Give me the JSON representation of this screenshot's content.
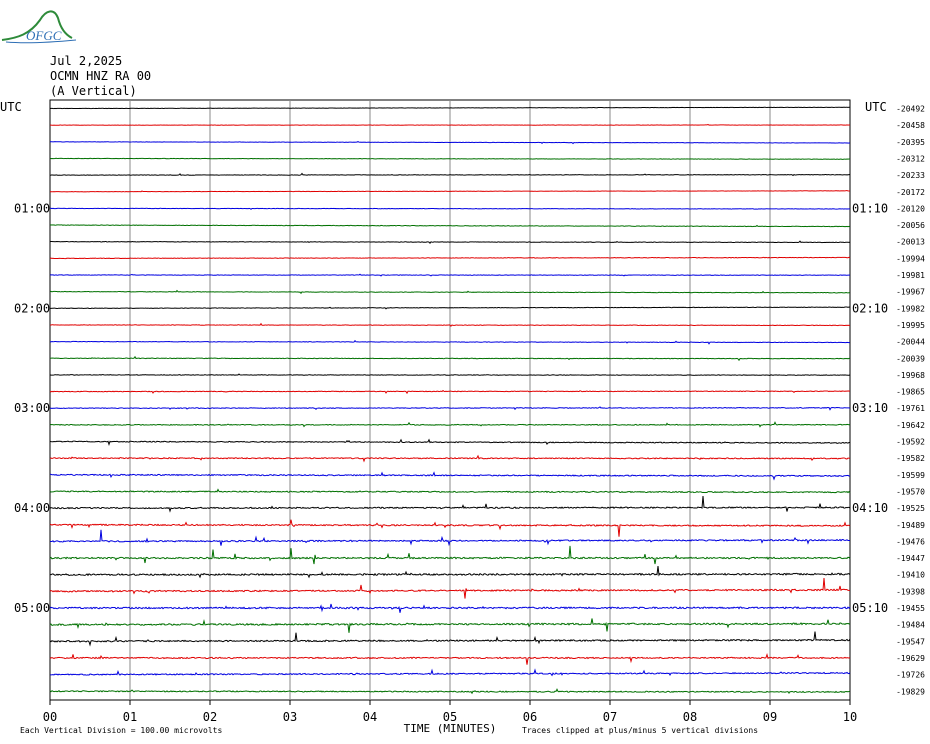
{
  "logo": {
    "text": "OFGC",
    "colors": {
      "mountain": "#2e8b3a",
      "text": "#2e6fb5"
    }
  },
  "header": {
    "date": "Jul 2,2025",
    "station": "OCMN HNZ RA 00",
    "component": "(A Vertical)"
  },
  "chart_data": {
    "type": "line",
    "title": "",
    "xlabel": "TIME (MINUTES)",
    "ylabel": "",
    "x_ticks": [
      "00",
      "01",
      "02",
      "03",
      "04",
      "05",
      "06",
      "07",
      "08",
      "09",
      "10"
    ],
    "xlim": [
      0,
      10
    ],
    "left_label_header": "UTC",
    "right_label_header": "UTC",
    "left_time_labels": [
      {
        "trace": 6,
        "label": "01:00"
      },
      {
        "trace": 12,
        "label": "02:00"
      },
      {
        "trace": 18,
        "label": "03:00"
      },
      {
        "trace": 24,
        "label": "04:00"
      },
      {
        "trace": 30,
        "label": "05:00"
      }
    ],
    "right_time_labels": [
      {
        "trace": 6,
        "label": "01:10"
      },
      {
        "trace": 12,
        "label": "02:10"
      },
      {
        "trace": 18,
        "label": "03:10"
      },
      {
        "trace": 24,
        "label": "04:10"
      },
      {
        "trace": 30,
        "label": "05:10"
      }
    ],
    "trace_colors": [
      "#000000",
      "#e00000",
      "#0000e0",
      "#007000"
    ],
    "trace_offsets": [
      "-20492",
      "-20458",
      "-20395",
      "-20312",
      "-20233",
      "-20172",
      "-20120",
      "-20056",
      "-20013",
      "-19994",
      "-19981",
      "-19967",
      "-19982",
      "-19995",
      "-20044",
      "-20039",
      "-19968",
      "-19865",
      "-19761",
      "-19642",
      "-19592",
      "-19582",
      "-19599",
      "-19570",
      "-19525",
      "-19489",
      "-19476",
      "-19447",
      "-19410",
      "-19398",
      "-19455",
      "-19484",
      "-19547",
      "-19629",
      "-19726",
      "-19829"
    ],
    "trace_activity": [
      0.2,
      0.2,
      0.2,
      0.25,
      0.3,
      0.2,
      0.25,
      0.3,
      0.3,
      0.3,
      0.3,
      0.3,
      0.3,
      0.3,
      0.3,
      0.35,
      0.35,
      0.4,
      0.45,
      0.5,
      0.55,
      0.65,
      0.7,
      0.7,
      0.8,
      0.8,
      0.85,
      0.9,
      1.0,
      0.9,
      1.0,
      1.0,
      0.9,
      0.8,
      0.75,
      0.7
    ],
    "footer_left": "Each Vertical Division =  100.00 microvolts",
    "footer_right": "Traces clipped at plus/minus 5 vertical divisions"
  }
}
